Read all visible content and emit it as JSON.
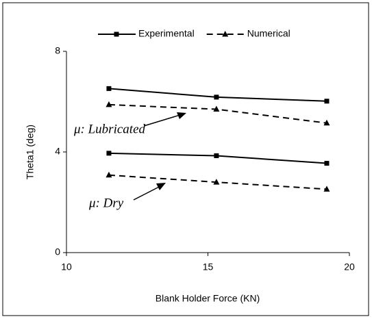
{
  "chart_data": {
    "type": "line",
    "x_label": "Blank Holder Force (KN)",
    "y_label": "Theta1 (deg)",
    "x": [
      11.5,
      15.3,
      19.2
    ],
    "series": [
      {
        "name": "Experimental",
        "color": "#000000",
        "dash": "solid",
        "marker": "square",
        "lines": [
          [
            6.52,
            6.18,
            6.02
          ],
          [
            3.95,
            3.85,
            3.55
          ]
        ]
      },
      {
        "name": "Numerical",
        "color": "#000000",
        "dash": "dashed",
        "marker": "triangle",
        "lines": [
          [
            5.88,
            5.7,
            5.15
          ],
          [
            3.08,
            2.8,
            2.52
          ]
        ]
      }
    ],
    "annotations": [
      "μ: Lubricated",
      "μ: Dry"
    ],
    "xlim": [
      10,
      20
    ],
    "xticks": [
      10,
      15,
      20
    ],
    "ylim": [
      0,
      8
    ],
    "yticks": [
      0,
      4,
      8
    ],
    "legend": "top",
    "grid": false
  }
}
